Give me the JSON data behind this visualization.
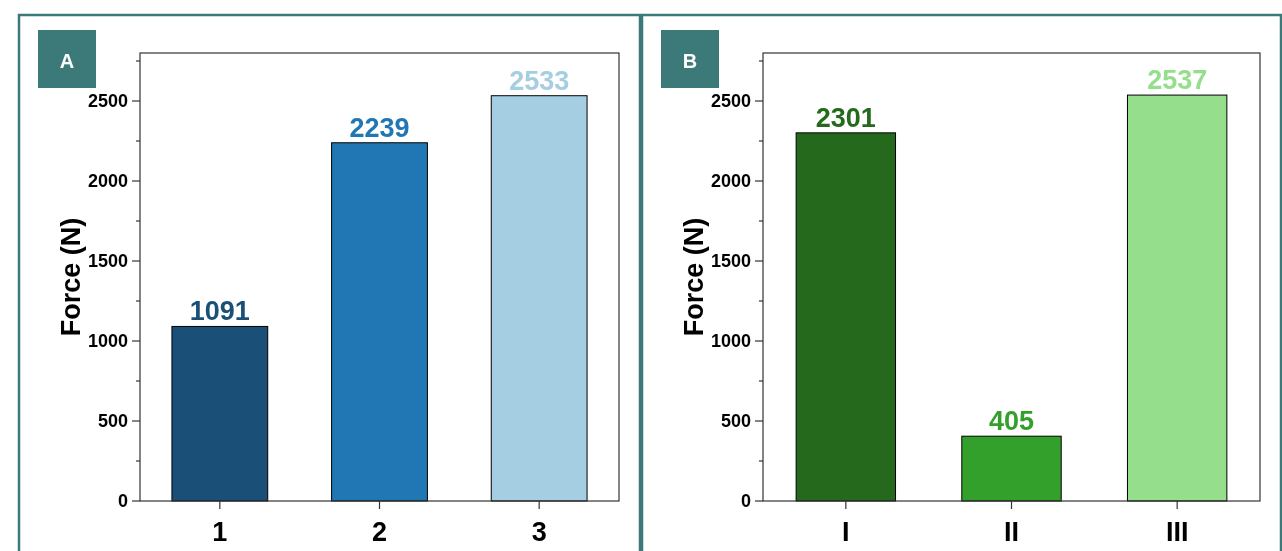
{
  "chart_data": [
    {
      "type": "bar",
      "annotations": [
        "A"
      ],
      "ylabel": "Force (N)",
      "categories": [
        "1",
        "2",
        "3"
      ],
      "values": [
        1091,
        2239,
        2533
      ],
      "colors": [
        "#1a5078",
        "#2077b4",
        "#a6cee3"
      ],
      "data_labels": true,
      "ylim": [
        0,
        2800
      ],
      "yticks": [
        0,
        {
          "value": 250,
          "label": null
        },
        500,
        {
          "value": 750,
          "label": null
        },
        1000,
        {
          "value": 1250,
          "label": null
        },
        1500,
        {
          "value": 1750,
          "label": null
        },
        2000,
        {
          "value": 2250,
          "label": null
        },
        2500,
        {
          "value": 2750,
          "label": null
        }
      ],
      "grid": false
    },
    {
      "type": "bar",
      "annotations": [
        "B"
      ],
      "ylabel": "Force (N)",
      "categories": [
        "I",
        "II",
        "III"
      ],
      "values": [
        2301,
        405,
        2537
      ],
      "colors": [
        "#256a1c",
        "#33a02c",
        "#95de8c"
      ],
      "data_labels": true,
      "ylim": [
        0,
        2800
      ],
      "yticks": [
        0,
        {
          "value": 250,
          "label": null
        },
        500,
        {
          "value": 750,
          "label": null
        },
        1000,
        {
          "value": 1250,
          "label": null
        },
        1500,
        {
          "value": 1750,
          "label": null
        },
        2000,
        {
          "value": 2250,
          "label": null
        },
        2500,
        {
          "value": 2750,
          "label": null
        }
      ],
      "grid": false
    }
  ]
}
